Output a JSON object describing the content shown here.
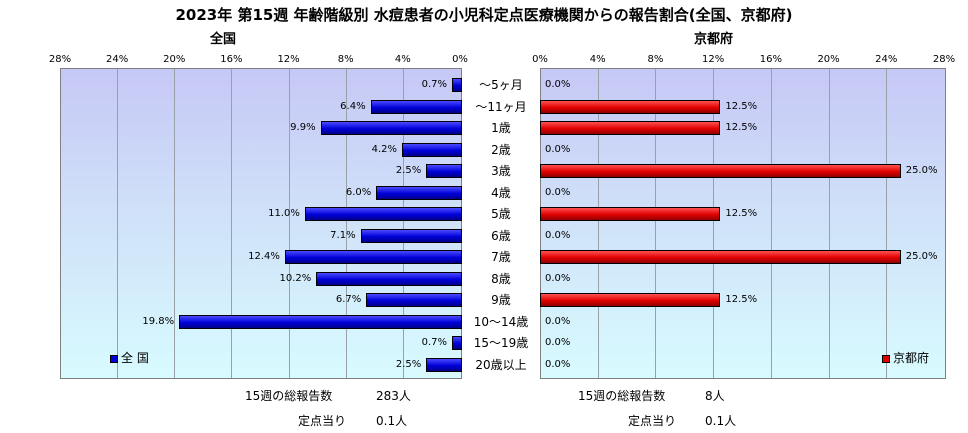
{
  "title": "2023年 第15週 年齢階級別 水痘患者の小児科定点医療機関からの報告割合(全国、京都府)",
  "left_panel": {
    "subtitle": "全国",
    "legend": "全 国",
    "color": "#0000d8"
  },
  "right_panel": {
    "subtitle": "京都府",
    "legend": "京都府",
    "color": "#e00000"
  },
  "chart_data": [
    {
      "type": "bar",
      "orientation": "horizontal-reversed",
      "title": "全国",
      "xlim": [
        0,
        28
      ],
      "ticks": [
        "28%",
        "24%",
        "20%",
        "16%",
        "12%",
        "8%",
        "4%",
        "0%"
      ],
      "grid": true,
      "legend_position": "bottom-left",
      "categories": [
        "〜5ヶ月",
        "〜11ヶ月",
        "1歳",
        "2歳",
        "3歳",
        "4歳",
        "5歳",
        "6歳",
        "7歳",
        "8歳",
        "9歳",
        "10〜14歳",
        "15〜19歳",
        "20歳以上"
      ],
      "series": [
        {
          "name": "全 国",
          "values": [
            0.7,
            6.4,
            9.9,
            4.2,
            2.5,
            6.0,
            11.0,
            7.1,
            12.4,
            10.2,
            6.7,
            19.8,
            0.7,
            2.5
          ],
          "labels": [
            "0.7%",
            "6.4%",
            "9.9%",
            "4.2%",
            "2.5%",
            "6.0%",
            "11.0%",
            "7.1%",
            "12.4%",
            "10.2%",
            "6.7%",
            "19.8%",
            "0.7%",
            "2.5%"
          ]
        }
      ]
    },
    {
      "type": "bar",
      "orientation": "horizontal",
      "title": "京都府",
      "xlim": [
        0,
        28
      ],
      "ticks": [
        "0%",
        "4%",
        "8%",
        "12%",
        "16%",
        "20%",
        "24%",
        "28%"
      ],
      "grid": true,
      "legend_position": "bottom-right",
      "categories": [
        "〜5ヶ月",
        "〜11ヶ月",
        "1歳",
        "2歳",
        "3歳",
        "4歳",
        "5歳",
        "6歳",
        "7歳",
        "8歳",
        "9歳",
        "10〜14歳",
        "15〜19歳",
        "20歳以上"
      ],
      "series": [
        {
          "name": "京都府",
          "values": [
            0.0,
            12.5,
            12.5,
            0.0,
            25.0,
            0.0,
            12.5,
            0.0,
            25.0,
            0.0,
            12.5,
            0.0,
            0.0,
            0.0
          ],
          "labels": [
            "0.0%",
            "12.5%",
            "12.5%",
            "0.0%",
            "25.0%",
            "0.0%",
            "12.5%",
            "0.0%",
            "25.0%",
            "0.0%",
            "12.5%",
            "0.0%",
            "0.0%",
            "0.0%"
          ]
        }
      ]
    }
  ],
  "footer": {
    "left_total_label": "15週の総報告数",
    "left_total_value": "283人",
    "left_per_label": "定点当り",
    "left_per_value": "0.1人",
    "right_total_label": "15週の総報告数",
    "right_total_value": "8人",
    "right_per_label": "定点当り",
    "right_per_value": "0.1人"
  }
}
